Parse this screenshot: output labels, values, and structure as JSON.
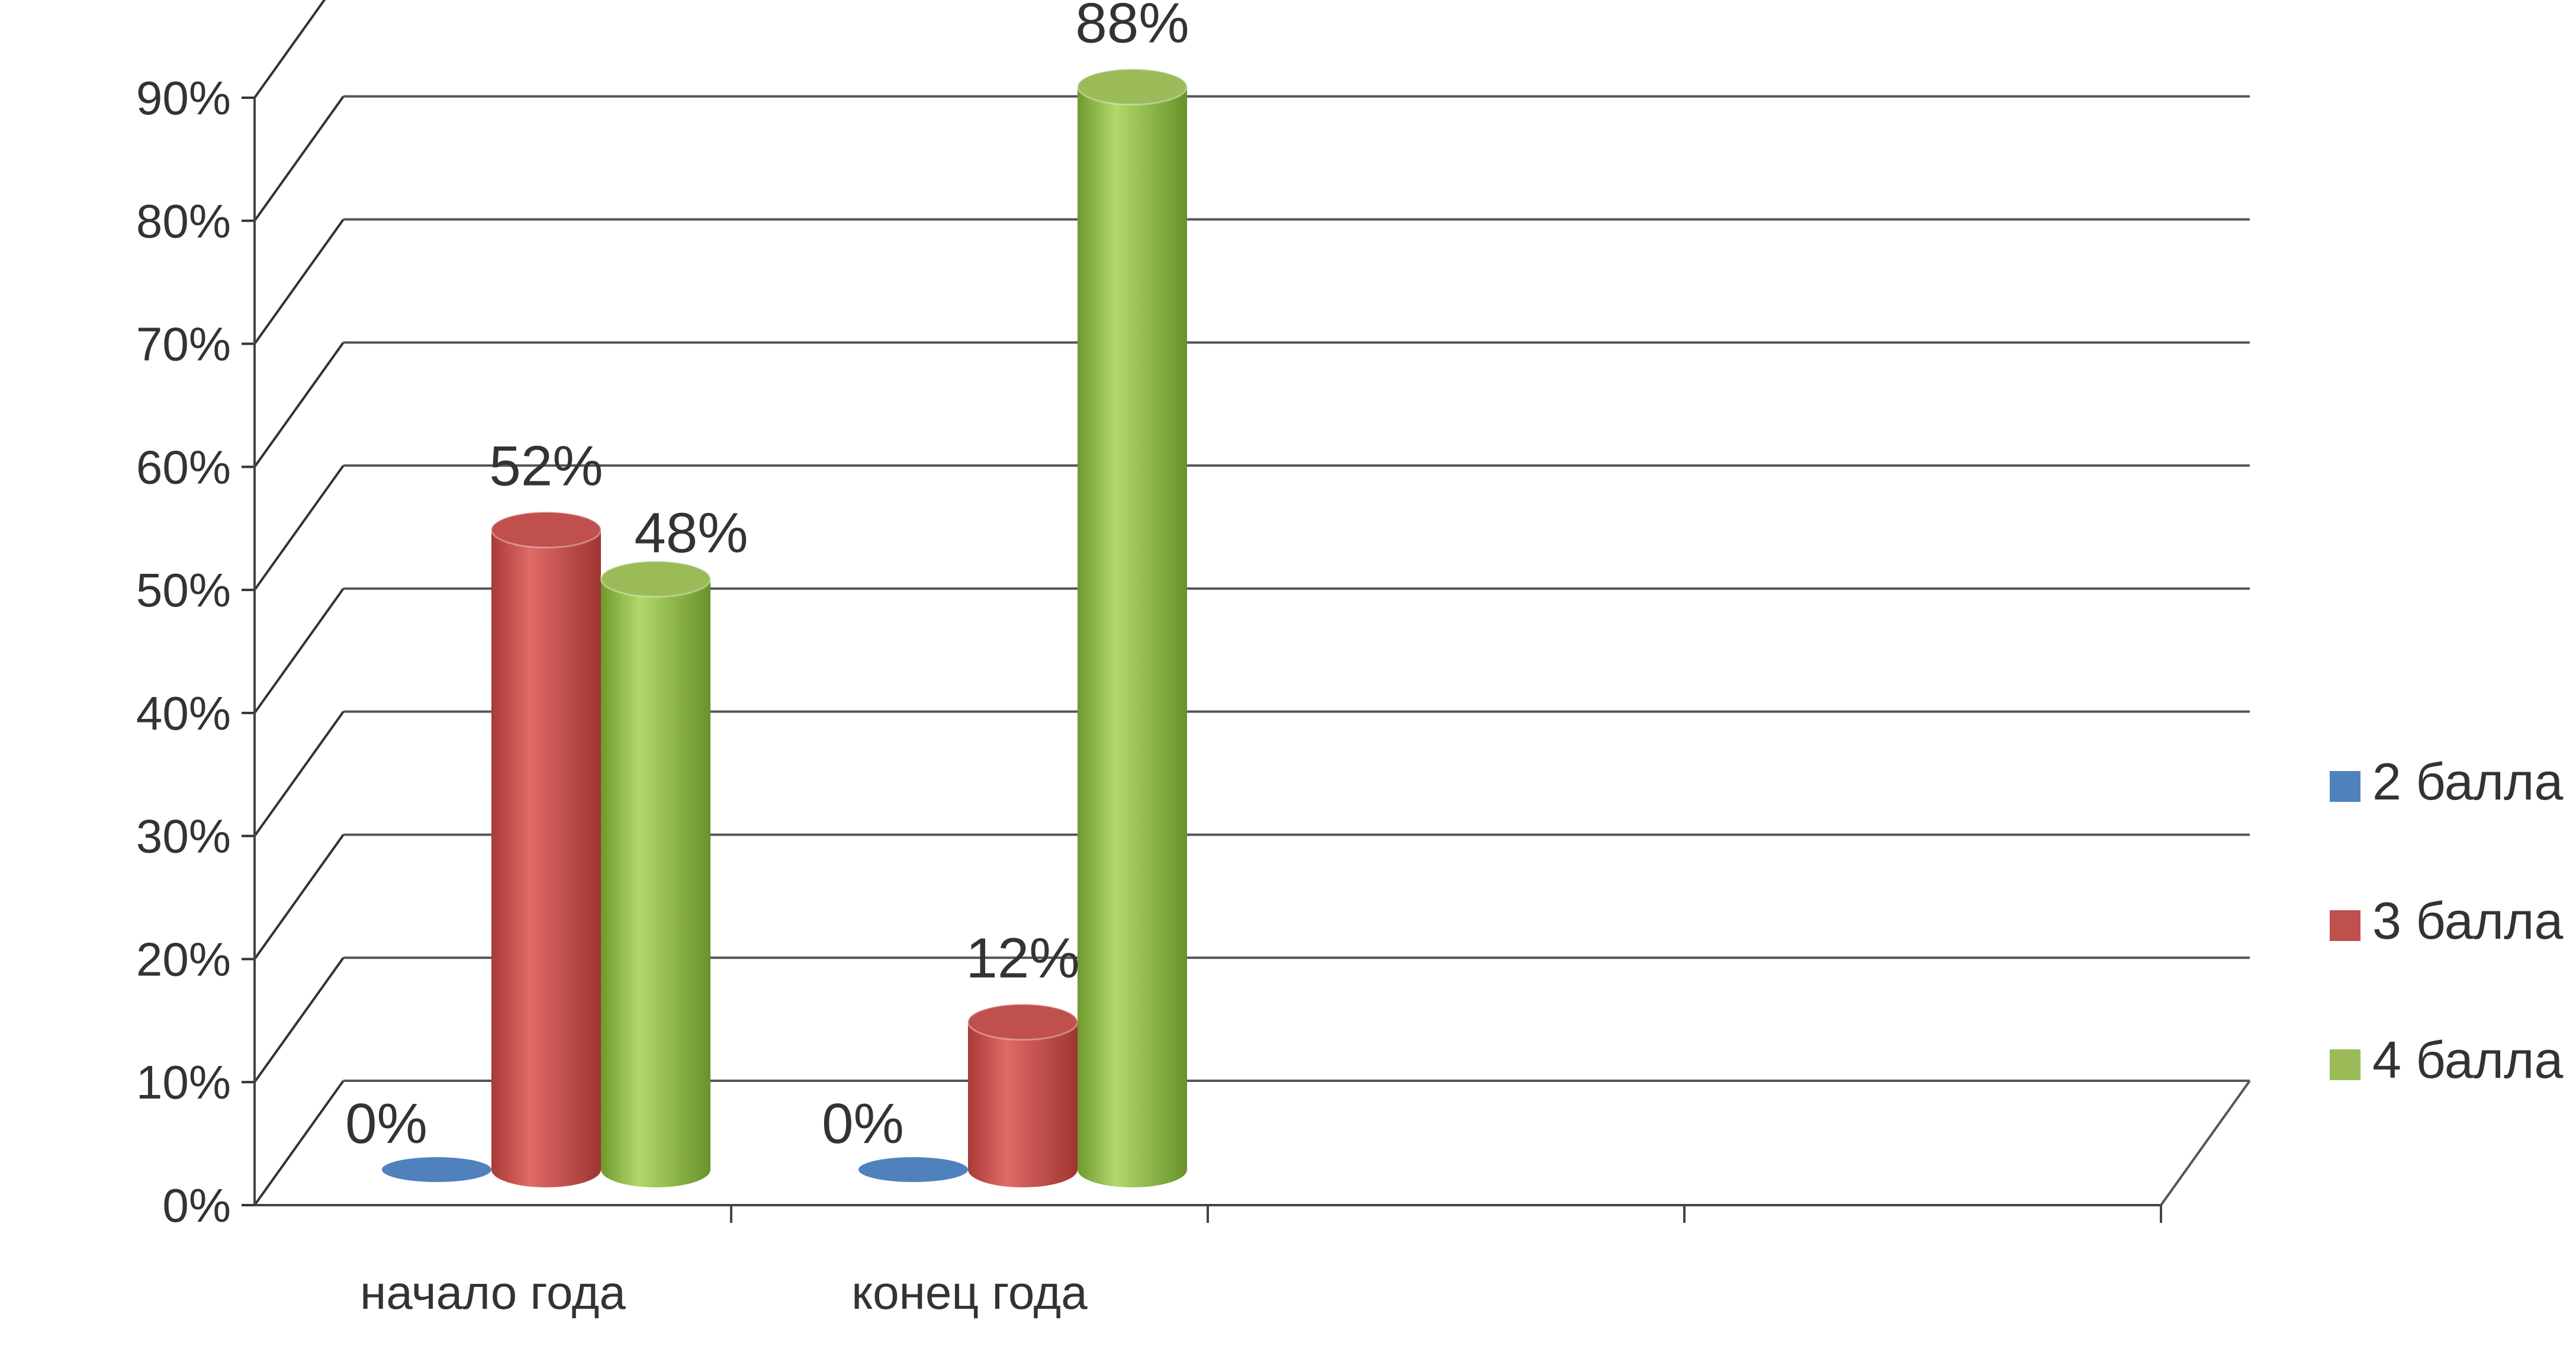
{
  "chart_data": {
    "type": "bar",
    "categories": [
      "начало года",
      "конец года"
    ],
    "series": [
      {
        "name": "2 балла",
        "values": [
          0,
          0
        ],
        "labels": [
          "0%",
          "0%"
        ],
        "color": "#4f81bd"
      },
      {
        "name": "3 балла",
        "values": [
          52,
          12
        ],
        "labels": [
          "52%",
          "12%"
        ],
        "color": "#c0504d"
      },
      {
        "name": "4 балла",
        "values": [
          48,
          88
        ],
        "labels": [
          "48%",
          "88%"
        ],
        "color": "#9bbb59"
      }
    ],
    "y_ticks": [
      "0%",
      "10%",
      "20%",
      "30%",
      "40%",
      "50%",
      "60%",
      "70%",
      "80%",
      "90%"
    ],
    "ylim": [
      0,
      90
    ],
    "grid": true,
    "legend_position": "right",
    "title": "",
    "xlabel": "",
    "ylabel": ""
  }
}
